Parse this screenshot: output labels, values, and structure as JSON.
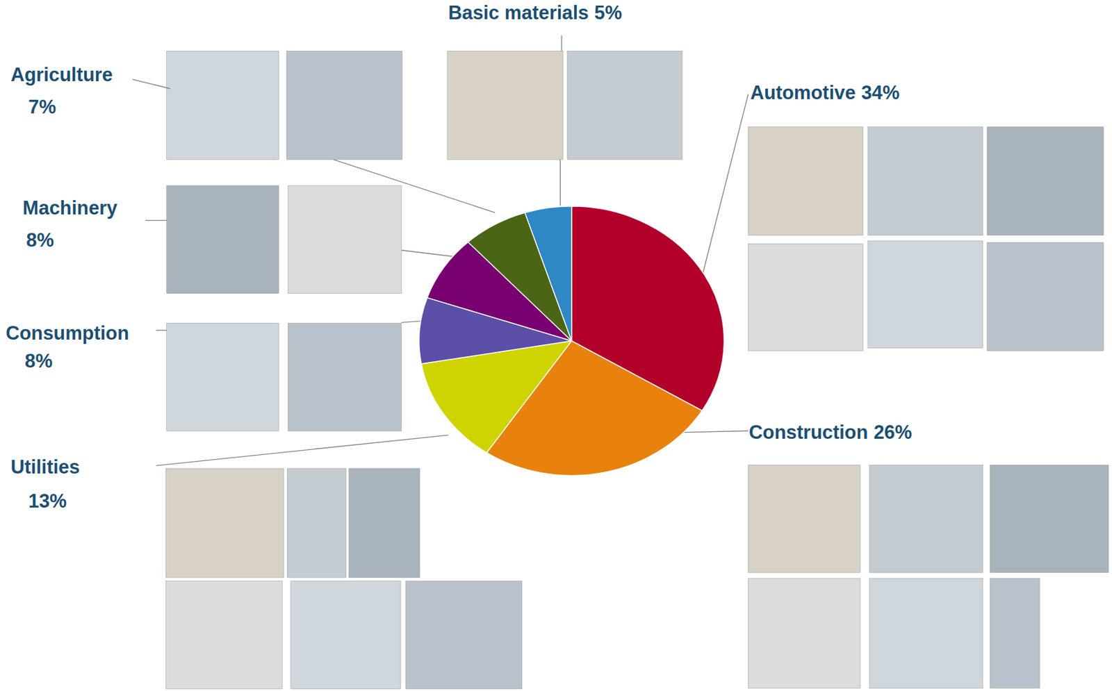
{
  "chart_data": {
    "type": "pie",
    "categories": [
      "Automotive",
      "Construction",
      "Utilities",
      "Consumption",
      "Machinery",
      "Agriculture",
      "Basic materials"
    ],
    "values": [
      34,
      26,
      13,
      8,
      8,
      7,
      5
    ],
    "value_labels": [
      "34%",
      "26%",
      "13%",
      "8%",
      "8%",
      "7%",
      "5%"
    ],
    "colors": [
      "#b3002a",
      "#e8820c",
      "#cfd400",
      "#5b4fa8",
      "#780070",
      "#4b6516",
      "#2f88c4"
    ],
    "data_labels": true
  }
}
